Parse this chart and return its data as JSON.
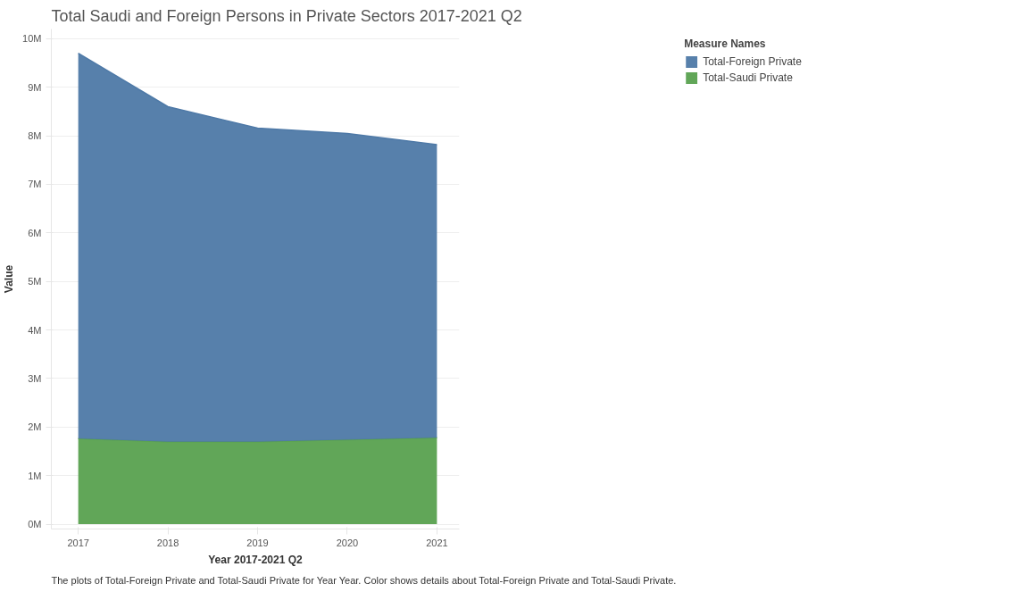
{
  "chart_data": {
    "type": "area",
    "stacked": true,
    "title": "Total Saudi and Foreign Persons in Private Sectors 2017-2021 Q2",
    "xlabel": "Year 2017-2021 Q2",
    "ylabel": "Value",
    "legend_title": "Measure Names",
    "x": [
      2017,
      2018,
      2019,
      2020,
      2021
    ],
    "series": [
      {
        "name": "Total-Saudi Private",
        "color": "#59a14f",
        "values": [
          1760000,
          1700000,
          1700000,
          1740000,
          1780000
        ]
      },
      {
        "name": "Total-Foreign Private",
        "color": "#4e79a7",
        "values": [
          7940000,
          6900000,
          6460000,
          6310000,
          6040000
        ]
      }
    ],
    "xlim": [
      2016.7,
      2021.25
    ],
    "xticks": [
      2017,
      2018,
      2019,
      2020,
      2021
    ],
    "ylim": [
      -100000,
      10200000
    ],
    "yticks": [
      {
        "value": 0,
        "label": "0M"
      },
      {
        "value": 1000000,
        "label": "1M"
      },
      {
        "value": 2000000,
        "label": "2M"
      },
      {
        "value": 3000000,
        "label": "3M"
      },
      {
        "value": 4000000,
        "label": "4M"
      },
      {
        "value": 5000000,
        "label": "5M"
      },
      {
        "value": 6000000,
        "label": "6M"
      },
      {
        "value": 7000000,
        "label": "7M"
      },
      {
        "value": 8000000,
        "label": "8M"
      },
      {
        "value": 9000000,
        "label": "9M"
      },
      {
        "value": 10000000,
        "label": "10M"
      }
    ],
    "grid": "y",
    "legend": "top right",
    "annotations": [
      "The plots of Total-Foreign Private and Total-Saudi Private for Year Year.  Color shows details about Total-Foreign Private and Total-Saudi Private."
    ]
  }
}
